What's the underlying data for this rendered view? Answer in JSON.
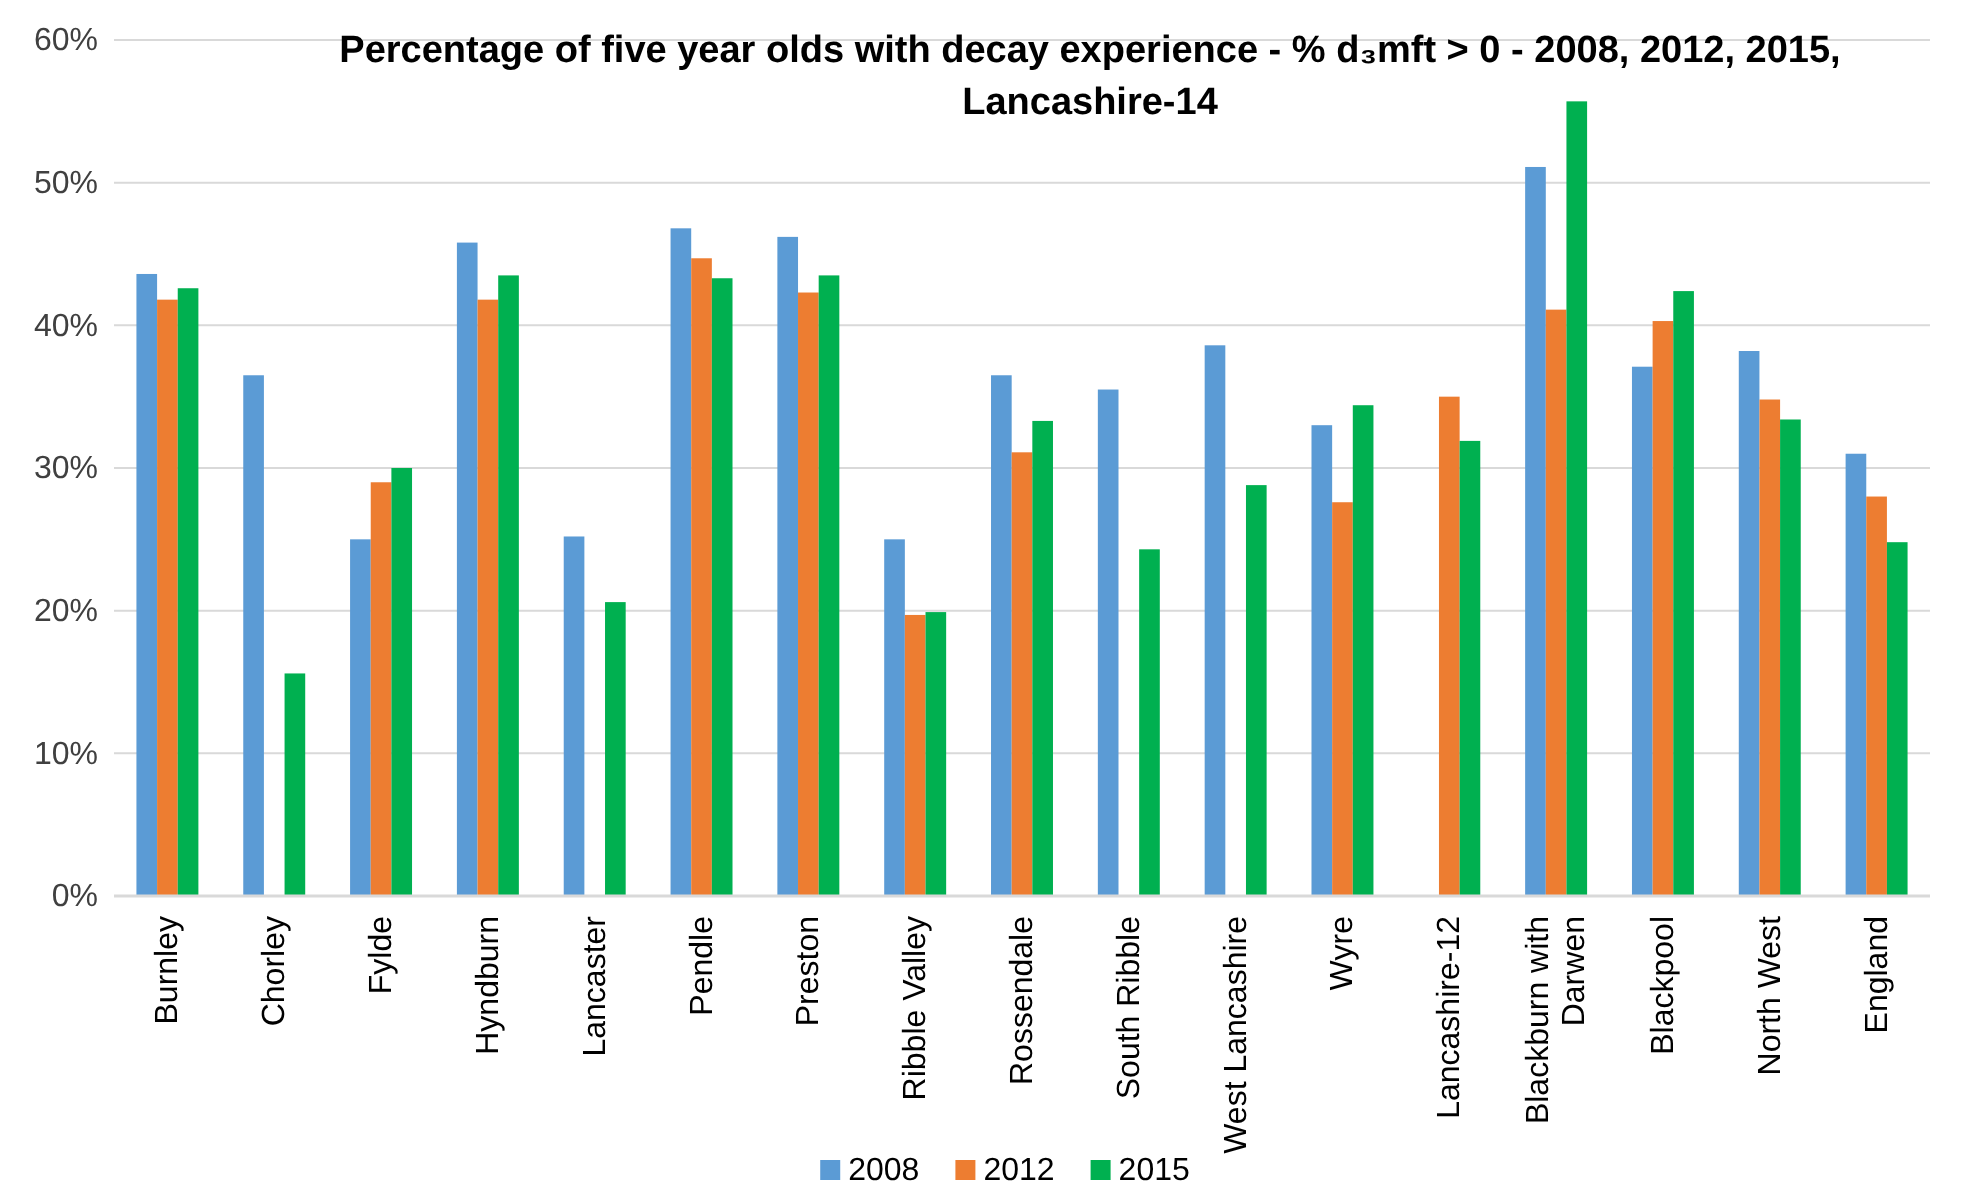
{
  "chart_data": {
    "type": "bar",
    "title": "Percentage of five year olds with decay experience - % d₃mft > 0 - 2008, 2012, 2015, Lancashire-14",
    "categories": [
      "Burnley",
      "Chorley",
      "Fylde",
      "Hyndburn",
      "Lancaster",
      "Pendle",
      "Preston",
      "Ribble Valley",
      "Rossendale",
      "South Ribble",
      "West Lancashire",
      "Wyre",
      "Lancashire-12",
      "Blackburn with Darwen",
      "Blackpool",
      "North West",
      "England"
    ],
    "series": [
      {
        "name": "2008",
        "color": "#5b9bd5",
        "values": [
          43.6,
          36.5,
          25.0,
          45.8,
          25.2,
          46.8,
          46.2,
          25.0,
          36.5,
          35.5,
          38.6,
          33.0,
          null,
          51.1,
          37.1,
          38.2,
          31.0
        ]
      },
      {
        "name": "2012",
        "color": "#ed7d31",
        "values": [
          41.8,
          null,
          29.0,
          41.8,
          null,
          44.7,
          42.3,
          19.7,
          31.1,
          null,
          null,
          27.6,
          35.0,
          41.1,
          40.3,
          34.8,
          28.0
        ]
      },
      {
        "name": "2015",
        "color": "#00b050",
        "values": [
          42.6,
          15.6,
          30.0,
          43.5,
          20.6,
          43.3,
          43.5,
          19.9,
          33.3,
          24.3,
          28.8,
          34.4,
          31.9,
          55.7,
          42.4,
          33.4,
          24.8
        ]
      }
    ],
    "ylim": [
      0,
      60
    ],
    "yticks": [
      {
        "value": 0,
        "label": "0%"
      },
      {
        "value": 10,
        "label": "10%"
      },
      {
        "value": 20,
        "label": "20%"
      },
      {
        "value": 30,
        "label": "30%"
      },
      {
        "value": 40,
        "label": "40%"
      },
      {
        "value": 50,
        "label": "50%"
      },
      {
        "value": 60,
        "label": "60%"
      }
    ],
    "grid": "y",
    "legend": "bottom"
  }
}
